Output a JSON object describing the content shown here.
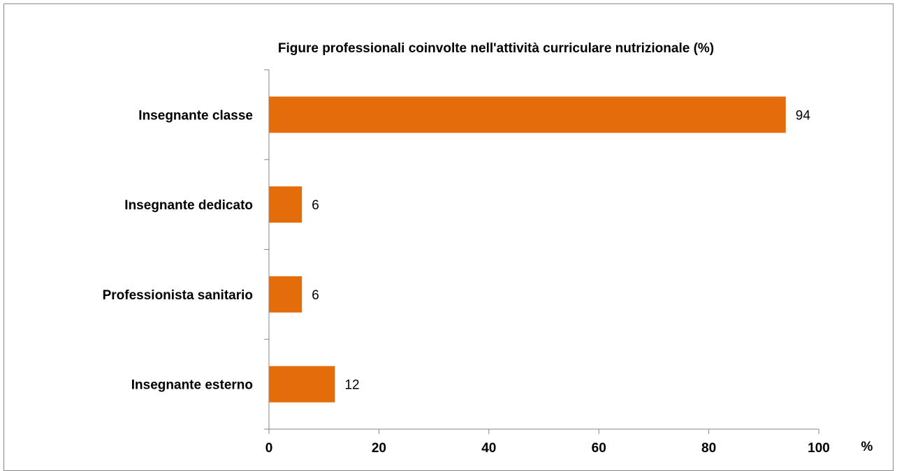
{
  "chart_data": {
    "type": "bar",
    "orientation": "horizontal",
    "title": "Figure professionali coinvolte nell'attività curriculare nutrizionale (%)",
    "categories": [
      "Insegnante classe",
      "Insegnante dedicato",
      "Professionista sanitario",
      "Insegnante esterno"
    ],
    "values": [
      94,
      6,
      6,
      12
    ],
    "data_labels": [
      "94",
      "6",
      "6",
      "12"
    ],
    "xlim": [
      0,
      100
    ],
    "x_ticks": [
      0,
      20,
      40,
      60,
      80,
      100
    ],
    "xlabel": "%",
    "ylabel": "",
    "grid": false,
    "legend": "none",
    "bar_color": "#E46C0A"
  }
}
